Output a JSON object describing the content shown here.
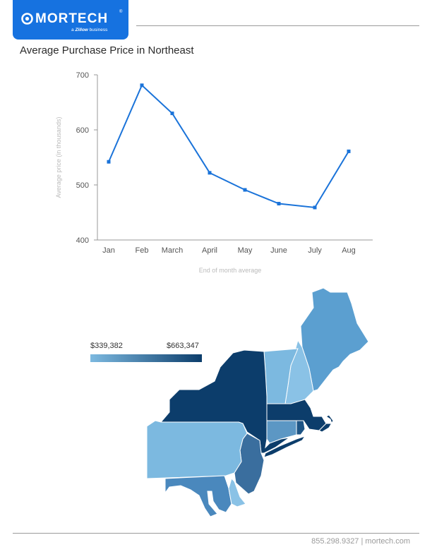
{
  "header": {
    "logo": {
      "wordmark": "MORTECH",
      "registered": "®",
      "tagline_prefix": "a",
      "tagline_brand": "Zillow",
      "tagline_suffix": "business"
    }
  },
  "title": "Average Purchase Price in Northeast",
  "chart_data": {
    "type": "line",
    "categories": [
      "Jan",
      "Feb",
      "March",
      "April",
      "May",
      "June",
      "July",
      "Aug"
    ],
    "series": [
      {
        "values": [
          542,
          681,
          630,
          522,
          491,
          466,
          459,
          561
        ]
      }
    ],
    "xlabel": "End of month average",
    "ylabel": "Average price (in thousands)",
    "ylim": [
      400,
      700
    ],
    "yticks": [
      400,
      500,
      600,
      700
    ],
    "grid": false,
    "color": "#1a73d9"
  },
  "map": {
    "legend": {
      "min_label": "$339,382",
      "max_label": "$663,347",
      "min_color": "#7cb9e0",
      "max_color": "#0c3d6b"
    },
    "states": [
      {
        "name": "Maine",
        "color": "#5b9fd0"
      },
      {
        "name": "New Hampshire",
        "color": "#8ac2e6"
      },
      {
        "name": "Vermont",
        "color": "#7cb9e0"
      },
      {
        "name": "Massachusetts",
        "color": "#0c3d6b"
      },
      {
        "name": "Rhode Island",
        "color": "#1d5485"
      },
      {
        "name": "Connecticut",
        "color": "#5c97c4"
      },
      {
        "name": "New York",
        "color": "#0c3d6b"
      },
      {
        "name": "New Jersey",
        "color": "#3a6e9e"
      },
      {
        "name": "Pennsylvania",
        "color": "#7cb9e0"
      },
      {
        "name": "Maryland",
        "color": "#4a88bd"
      },
      {
        "name": "Delaware",
        "color": "#8ac2e6"
      }
    ]
  },
  "footer": {
    "phone": "855.298.9327",
    "separator": "|",
    "site": "mortech.com"
  }
}
